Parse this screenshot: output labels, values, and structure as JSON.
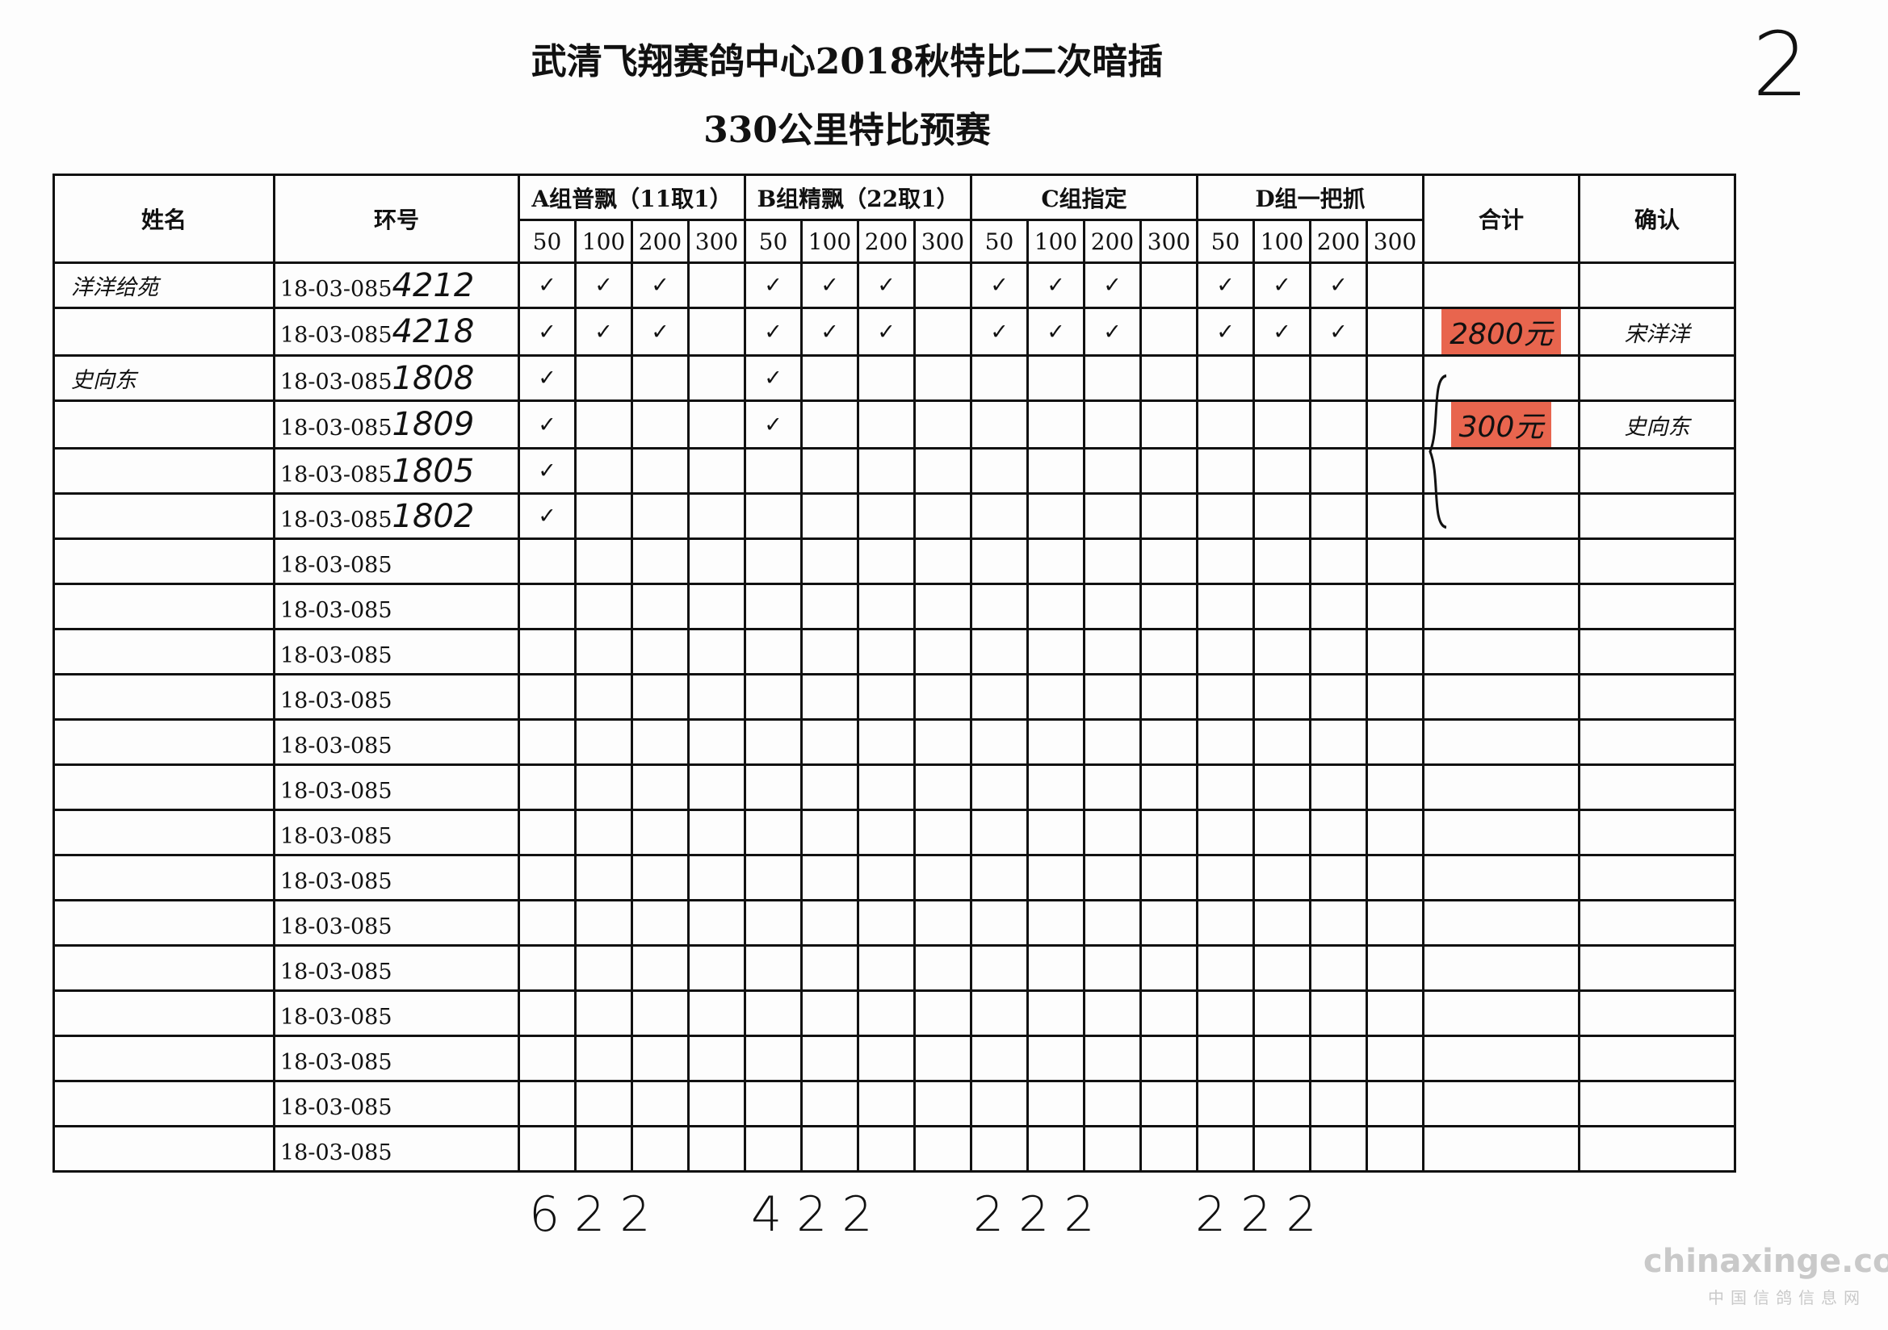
{
  "title": "武清飞翔赛鸽中心2018秋特比二次暗插",
  "subtitle": "330公里特比预赛",
  "page_number": "2",
  "headers": {
    "name": "姓名",
    "ring": "环号",
    "groups": [
      "A组普飘（11取1）",
      "B组精飘（22取1）",
      "C组指定",
      "D组一把抓"
    ],
    "stakes": [
      "50",
      "100",
      "200",
      "300"
    ],
    "total": "合计",
    "confirm": "确认"
  },
  "check_mark": "✓",
  "rows": [
    {
      "name": "洋洋给苑",
      "ring_prefix": "18-03-085",
      "ring_suffix": "4212",
      "checks": [
        [
          1,
          1,
          1,
          0
        ],
        [
          1,
          1,
          1,
          0
        ],
        [
          1,
          1,
          1,
          0
        ],
        [
          1,
          1,
          1,
          0
        ]
      ],
      "total": "",
      "confirm": ""
    },
    {
      "name": "",
      "ring_prefix": "18-03-085",
      "ring_suffix": "4218",
      "checks": [
        [
          1,
          1,
          1,
          0
        ],
        [
          1,
          1,
          1,
          0
        ],
        [
          1,
          1,
          1,
          0
        ],
        [
          1,
          1,
          1,
          0
        ]
      ],
      "total": "2800元",
      "confirm": "宋洋洋"
    },
    {
      "name": "史向东",
      "ring_prefix": "18-03-085",
      "ring_suffix": "1808",
      "checks": [
        [
          1,
          0,
          0,
          0
        ],
        [
          1,
          0,
          0,
          0
        ],
        [
          0,
          0,
          0,
          0
        ],
        [
          0,
          0,
          0,
          0
        ]
      ],
      "total": "",
      "confirm": ""
    },
    {
      "name": "",
      "ring_prefix": "18-03-085",
      "ring_suffix": "1809",
      "checks": [
        [
          1,
          0,
          0,
          0
        ],
        [
          1,
          0,
          0,
          0
        ],
        [
          0,
          0,
          0,
          0
        ],
        [
          0,
          0,
          0,
          0
        ]
      ],
      "total": "300元",
      "confirm": "史向东"
    },
    {
      "name": "",
      "ring_prefix": "18-03-085",
      "ring_suffix": "1805",
      "checks": [
        [
          1,
          0,
          0,
          0
        ],
        [
          0,
          0,
          0,
          0
        ],
        [
          0,
          0,
          0,
          0
        ],
        [
          0,
          0,
          0,
          0
        ]
      ],
      "total": "",
      "confirm": ""
    },
    {
      "name": "",
      "ring_prefix": "18-03-085",
      "ring_suffix": "1802",
      "checks": [
        [
          1,
          0,
          0,
          0
        ],
        [
          0,
          0,
          0,
          0
        ],
        [
          0,
          0,
          0,
          0
        ],
        [
          0,
          0,
          0,
          0
        ]
      ],
      "total": "",
      "confirm": ""
    },
    {
      "name": "",
      "ring_prefix": "18-03-085",
      "ring_suffix": "",
      "checks": [],
      "total": "",
      "confirm": ""
    },
    {
      "name": "",
      "ring_prefix": "18-03-085",
      "ring_suffix": "",
      "checks": [],
      "total": "",
      "confirm": ""
    },
    {
      "name": "",
      "ring_prefix": "18-03-085",
      "ring_suffix": "",
      "checks": [],
      "total": "",
      "confirm": ""
    },
    {
      "name": "",
      "ring_prefix": "18-03-085",
      "ring_suffix": "",
      "checks": [],
      "total": "",
      "confirm": ""
    },
    {
      "name": "",
      "ring_prefix": "18-03-085",
      "ring_suffix": "",
      "checks": [],
      "total": "",
      "confirm": ""
    },
    {
      "name": "",
      "ring_prefix": "18-03-085",
      "ring_suffix": "",
      "checks": [],
      "total": "",
      "confirm": ""
    },
    {
      "name": "",
      "ring_prefix": "18-03-085",
      "ring_suffix": "",
      "checks": [],
      "total": "",
      "confirm": ""
    },
    {
      "name": "",
      "ring_prefix": "18-03-085",
      "ring_suffix": "",
      "checks": [],
      "total": "",
      "confirm": ""
    },
    {
      "name": "",
      "ring_prefix": "18-03-085",
      "ring_suffix": "",
      "checks": [],
      "total": "",
      "confirm": ""
    },
    {
      "name": "",
      "ring_prefix": "18-03-085",
      "ring_suffix": "",
      "checks": [],
      "total": "",
      "confirm": ""
    },
    {
      "name": "",
      "ring_prefix": "18-03-085",
      "ring_suffix": "",
      "checks": [],
      "total": "",
      "confirm": ""
    },
    {
      "name": "",
      "ring_prefix": "18-03-085",
      "ring_suffix": "",
      "checks": [],
      "total": "",
      "confirm": ""
    },
    {
      "name": "",
      "ring_prefix": "18-03-085",
      "ring_suffix": "",
      "checks": [],
      "total": "",
      "confirm": ""
    },
    {
      "name": "",
      "ring_prefix": "18-03-085",
      "ring_suffix": "",
      "checks": [],
      "total": "",
      "confirm": ""
    }
  ],
  "column_totals": [
    "622",
    "422",
    "222",
    "222"
  ],
  "stamp_color": "#e8654e",
  "watermark": {
    "site": "chinaxinge.com",
    "name": "中国信鸽信息网"
  }
}
